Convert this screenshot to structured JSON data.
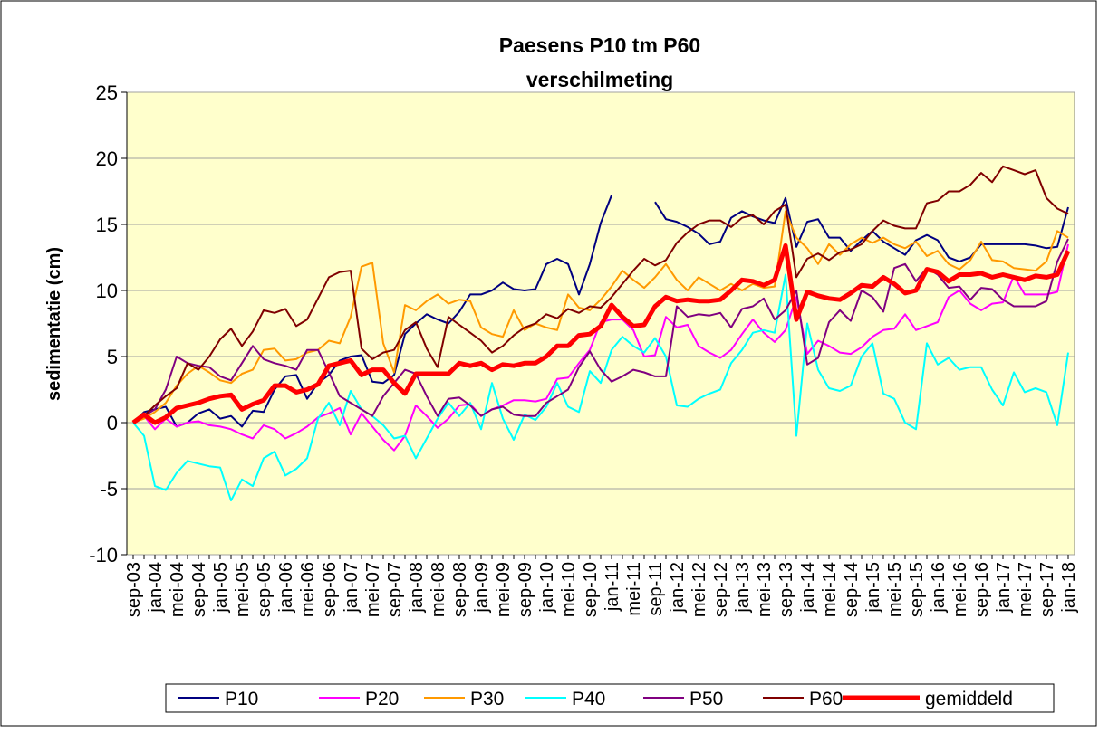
{
  "chart_data": {
    "type": "line",
    "title": [
      "Paesens P10 tm P60",
      "verschilmeting"
    ],
    "y_label": "sedimentatie (cm)",
    "categories": [
      "sep-03",
      null,
      "jan-04",
      null,
      "mei-04",
      null,
      "sep-04",
      null,
      "jan-05",
      null,
      "mei-05",
      null,
      "sep-05",
      null,
      "jan-06",
      null,
      "mei-06",
      null,
      "sep-06",
      null,
      "jan-07",
      null,
      "mei-07",
      null,
      "sep-07",
      null,
      "jan-08",
      null,
      "mei-08",
      null,
      "sep-08",
      null,
      "jan-09",
      null,
      "mei-09",
      null,
      "sep-09",
      null,
      "jan-10",
      null,
      "mei-10",
      null,
      "sep-10",
      null,
      "jan-11",
      null,
      "mei-11",
      null,
      "sep-11",
      null,
      "jan-12",
      null,
      "mei-12",
      null,
      "sep-12",
      null,
      "jan-13",
      null,
      "mei-13",
      null,
      "sep-13",
      null,
      "jan-14",
      null,
      "mei-14",
      null,
      "sep-14",
      null,
      "jan-15",
      null,
      "mei-15",
      null,
      "sep-15",
      null,
      "jan-16",
      null,
      "mei-16",
      null,
      "sep-16",
      null,
      "jan-17",
      null,
      "mei-17",
      null,
      "sep-17",
      null,
      "jan-18"
    ],
    "series": [
      {
        "name": "P10",
        "color": "#000080",
        "width": 2,
        "values": [
          0,
          0.8,
          1.0,
          1.2,
          -0.3,
          0,
          0.7,
          1.0,
          0.3,
          0.5,
          -0.3,
          0.9,
          0.8,
          2.5,
          3.5,
          3.6,
          1.8,
          3.0,
          3.6,
          4.7,
          5.0,
          5.1,
          3.1,
          3.0,
          3.6,
          6.7,
          7.5,
          8.2,
          7.8,
          7.5,
          8.4,
          9.7,
          9.7,
          10.0,
          10.6,
          10.1,
          10.0,
          10.1,
          12.0,
          12.4,
          12.0,
          9.7,
          12.0,
          15.1,
          17.2,
          null,
          null,
          null,
          16.7,
          15.4,
          15.2,
          14.8,
          14.3,
          13.5,
          13.7,
          15.5,
          16.0,
          15.6,
          15.3,
          15.1,
          17.0,
          13.3,
          15.2,
          15.4,
          14.0,
          14.0,
          13.0,
          13.8,
          14.5,
          13.7,
          13.2,
          12.7,
          13.8,
          14.2,
          13.8,
          12.5,
          12.2,
          12.5,
          13.5,
          13.5,
          13.5,
          13.5,
          13.5,
          13.4,
          13.2,
          13.3,
          16.3
        ]
      },
      {
        "name": "P20",
        "color": "#ff00ff",
        "width": 2,
        "values": [
          0,
          0.5,
          -0.5,
          0.3,
          -0.3,
          0,
          0.1,
          -0.2,
          -0.3,
          -0.5,
          -0.9,
          -1.2,
          -0.2,
          -0.5,
          -1.2,
          -0.8,
          -0.3,
          0.4,
          0.7,
          1.1,
          -0.9,
          0.7,
          -0.3,
          -1.3,
          -2.1,
          -1.0,
          1.3,
          0.5,
          -0.4,
          0.3,
          1.3,
          1.4,
          0.5,
          1.0,
          1.3,
          1.7,
          1.7,
          1.6,
          1.8,
          3.3,
          3.4,
          4.5,
          5.5,
          7.6,
          7.8,
          7.8,
          7.0,
          5.0,
          5.1,
          8.0,
          7.2,
          7.4,
          5.8,
          5.3,
          4.9,
          5.5,
          6.7,
          7.8,
          6.8,
          6.1,
          7.0,
          9.5,
          5.2,
          6.2,
          5.8,
          5.3,
          5.2,
          5.7,
          6.5,
          7.0,
          7.1,
          8.2,
          7.0,
          7.3,
          7.6,
          9.5,
          10.0,
          9.0,
          8.5,
          9.0,
          9.1,
          11.1,
          9.7,
          9.7,
          9.7,
          9.9,
          13.5
        ]
      },
      {
        "name": "P30",
        "color": "#ff9900",
        "width": 2,
        "values": [
          0,
          0.3,
          0.8,
          1.5,
          2.8,
          3.7,
          4.3,
          3.8,
          3.2,
          3.0,
          3.7,
          4.0,
          5.5,
          5.6,
          4.7,
          4.8,
          5.3,
          5.5,
          6.2,
          6.0,
          8.0,
          11.8,
          12.1,
          6.0,
          3.8,
          8.9,
          8.5,
          9.2,
          9.7,
          9.0,
          9.3,
          9.2,
          7.2,
          6.7,
          6.5,
          8.5,
          7.0,
          7.5,
          7.2,
          7.0,
          9.7,
          8.7,
          8.5,
          9.3,
          10.3,
          11.5,
          10.8,
          10.2,
          11.0,
          12.0,
          10.8,
          10.0,
          11.0,
          10.5,
          10.0,
          10.5,
          10.0,
          10.5,
          10.2,
          10.3,
          16.0,
          14.0,
          13.2,
          12.0,
          13.5,
          12.7,
          13.5,
          14.0,
          13.6,
          14.0,
          13.5,
          13.2,
          13.7,
          12.6,
          13.0,
          12.0,
          11.6,
          12.3,
          13.7,
          12.3,
          12.2,
          11.7,
          11.6,
          11.5,
          12.2,
          14.5,
          14.0
        ]
      },
      {
        "name": "P40",
        "color": "#00ffff",
        "width": 2,
        "values": [
          0,
          -1.0,
          -4.8,
          -5.1,
          -3.8,
          -2.9,
          -3.1,
          -3.3,
          -3.4,
          -5.9,
          -4.3,
          -4.8,
          -2.7,
          -2.2,
          -4.0,
          -3.5,
          -2.7,
          0.3,
          1.5,
          -0.2,
          2.4,
          1.0,
          0.5,
          -0.2,
          -1.2,
          -1.0,
          -2.7,
          -1.2,
          0.3,
          1.5,
          0.5,
          1.5,
          -0.5,
          3.0,
          0.3,
          -1.3,
          0.6,
          0.2,
          1.2,
          3.0,
          1.2,
          0.8,
          3.9,
          3.0,
          5.5,
          6.5,
          5.8,
          5.3,
          6.4,
          5.0,
          1.3,
          1.2,
          1.8,
          2.2,
          2.5,
          4.5,
          5.5,
          6.8,
          7.0,
          6.8,
          11.2,
          -1.0,
          7.5,
          4.0,
          2.6,
          2.4,
          2.8,
          5.0,
          6.0,
          2.2,
          1.8,
          0.0,
          -0.5,
          6.0,
          4.4,
          4.9,
          4.0,
          4.2,
          4.2,
          2.5,
          1.3,
          3.8,
          2.3,
          2.6,
          2.3,
          -0.2,
          5.3
        ]
      },
      {
        "name": "P50",
        "color": "#800080",
        "width": 2,
        "values": [
          0,
          0.5,
          1.0,
          2.5,
          5.0,
          4.5,
          4.3,
          4.2,
          3.5,
          3.2,
          4.5,
          5.8,
          4.8,
          4.5,
          4.3,
          4.0,
          5.5,
          5.5,
          3.8,
          2.0,
          1.5,
          1.0,
          0.5,
          2.0,
          3.0,
          4.0,
          3.7,
          2.0,
          0.5,
          1.8,
          1.9,
          1.3,
          0.5,
          1.0,
          1.2,
          0.6,
          0.5,
          0.5,
          1.5,
          2.0,
          2.5,
          4.2,
          5.4,
          4.0,
          3.1,
          3.5,
          4.0,
          3.8,
          3.5,
          3.5,
          8.8,
          8.0,
          8.2,
          8.1,
          8.3,
          7.2,
          8.6,
          8.8,
          9.4,
          7.8,
          8.5,
          10.0,
          4.4,
          4.9,
          7.6,
          8.5,
          7.7,
          10.0,
          9.5,
          8.4,
          11.7,
          12.0,
          10.7,
          11.7,
          11.2,
          10.2,
          10.3,
          9.3,
          10.2,
          10.1,
          9.3,
          8.8,
          8.8,
          8.8,
          9.2,
          12.2,
          13.9
        ]
      },
      {
        "name": "P60",
        "color": "#800000",
        "width": 2,
        "values": [
          0,
          0.5,
          1.3,
          2.0,
          2.6,
          4.5,
          4.0,
          5.0,
          6.3,
          7.1,
          5.8,
          6.9,
          8.5,
          8.3,
          8.6,
          7.3,
          7.8,
          9.4,
          11.0,
          11.4,
          11.5,
          5.6,
          4.8,
          5.3,
          5.5,
          7.0,
          7.6,
          5.6,
          4.2,
          8.0,
          7.4,
          6.8,
          6.2,
          5.3,
          5.8,
          6.6,
          7.2,
          7.5,
          8.2,
          7.9,
          8.6,
          8.3,
          8.8,
          8.7,
          9.5,
          10.5,
          11.5,
          12.4,
          11.9,
          12.3,
          13.6,
          14.4,
          15.0,
          15.3,
          15.3,
          14.8,
          15.5,
          15.7,
          15.0,
          16.0,
          16.5,
          11.0,
          12.4,
          12.8,
          12.3,
          12.9,
          13.1,
          13.5,
          14.5,
          15.3,
          14.9,
          14.7,
          14.7,
          16.6,
          16.8,
          17.5,
          17.5,
          18.0,
          18.9,
          18.2,
          19.4,
          19.1,
          18.8,
          19.1,
          17.0,
          16.2,
          15.8
        ]
      },
      {
        "name": "gemiddeld",
        "color": "#ff0000",
        "width": 5,
        "values": [
          0,
          0.6,
          0,
          0.4,
          1.1,
          1.3,
          1.5,
          1.8,
          2.0,
          2.1,
          1.0,
          1.4,
          1.7,
          2.8,
          2.8,
          2.3,
          2.5,
          2.9,
          4.3,
          4.5,
          4.7,
          3.6,
          4.0,
          4.0,
          3.0,
          2.2,
          3.7,
          3.7,
          3.7,
          3.7,
          4.5,
          4.3,
          4.5,
          4.0,
          4.4,
          4.3,
          4.5,
          4.5,
          5.0,
          5.8,
          5.8,
          6.6,
          6.7,
          7.3,
          8.9,
          8.0,
          7.3,
          7.4,
          8.8,
          9.5,
          9.2,
          9.3,
          9.2,
          9.2,
          9.3,
          10.0,
          10.8,
          10.7,
          10.4,
          10.8,
          13.4,
          7.8,
          9.9,
          9.6,
          9.4,
          9.3,
          9.8,
          10.4,
          10.3,
          11.0,
          10.5,
          9.8,
          10.0,
          11.6,
          11.4,
          10.7,
          11.2,
          11.2,
          11.3,
          11.0,
          11.2,
          11.0,
          10.8,
          11.1,
          11.0,
          11.2,
          13.0
        ]
      }
    ],
    "ylim": [
      -10,
      25
    ],
    "yticks": [
      -10,
      -5,
      0,
      5,
      10,
      15,
      20,
      25
    ],
    "grid": true
  }
}
